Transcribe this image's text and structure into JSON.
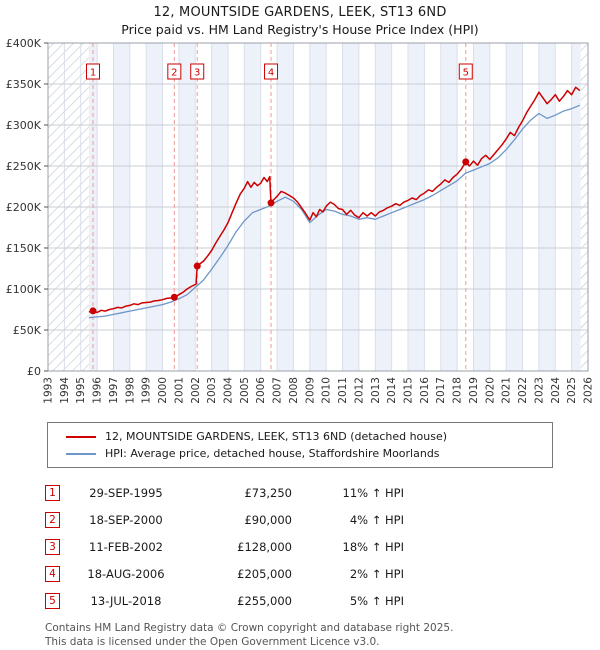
{
  "title": "12, MOUNTSIDE GARDENS, LEEK, ST13 6ND",
  "subtitle": "Price paid vs. HM Land Registry's House Price Index (HPI)",
  "accent_red": "#cc0000",
  "hpi_blue": "#6e96c8",
  "transactions": [
    {
      "num": "1",
      "date": "29-SEP-1995",
      "price": "£73,250",
      "hpi": "11% ↑ HPI"
    },
    {
      "num": "2",
      "date": "18-SEP-2000",
      "price": "£90,000",
      "hpi": "4% ↑ HPI"
    },
    {
      "num": "3",
      "date": "11-FEB-2002",
      "price": "£128,000",
      "hpi": "18% ↑ HPI"
    },
    {
      "num": "4",
      "date": "18-AUG-2006",
      "price": "£205,000",
      "hpi": "2% ↑ HPI"
    },
    {
      "num": "5",
      "date": "13-JUL-2018",
      "price": "£255,000",
      "hpi": "5% ↑ HPI"
    }
  ],
  "footer": {
    "line1": "Contains HM Land Registry data © Crown copyright and database right 2025.",
    "line2": "This data is licensed under the Open Government Licence v3.0."
  },
  "chart_data": {
    "type": "line",
    "title": "12, MOUNTSIDE GARDENS, LEEK, ST13 6ND",
    "subtitle": "Price paid vs. HM Land Registry's House Price Index (HPI)",
    "x_range": [
      1993,
      2026
    ],
    "y_range_k": [
      0,
      400
    ],
    "y_units": "GBP thousands",
    "y_ticks": [
      "£0",
      "£50K",
      "£100K",
      "£150K",
      "£200K",
      "£250K",
      "£300K",
      "£350K",
      "£400K"
    ],
    "grid": true,
    "legend_position": "bottom",
    "data_span": [
      1995.5,
      2025.55
    ],
    "series": [
      {
        "name": "12, MOUNTSIDE GARDENS, LEEK, ST13 6ND (detached house)",
        "color": "#cc0000",
        "points": [
          [
            1995.5,
            72
          ],
          [
            1995.75,
            73.25
          ],
          [
            1996,
            71.5
          ],
          [
            1996.25,
            74
          ],
          [
            1996.5,
            73
          ],
          [
            1996.75,
            75
          ],
          [
            1997,
            76
          ],
          [
            1997.25,
            77.5
          ],
          [
            1997.5,
            77
          ],
          [
            1997.75,
            79
          ],
          [
            1998,
            80
          ],
          [
            1998.25,
            82
          ],
          [
            1998.5,
            81
          ],
          [
            1998.75,
            83
          ],
          [
            1999,
            83.5
          ],
          [
            1999.25,
            84
          ],
          [
            1999.5,
            85.5
          ],
          [
            1999.75,
            86
          ],
          [
            2000,
            87
          ],
          [
            2000.25,
            88.5
          ],
          [
            2000.5,
            89
          ],
          [
            2000.72,
            90
          ],
          [
            2001,
            93
          ],
          [
            2001.25,
            96
          ],
          [
            2001.5,
            100
          ],
          [
            2001.75,
            103
          ],
          [
            2002.05,
            106
          ],
          [
            2002.12,
            128
          ],
          [
            2002.3,
            131
          ],
          [
            2002.5,
            134
          ],
          [
            2002.75,
            140
          ],
          [
            2003,
            147
          ],
          [
            2003.25,
            156
          ],
          [
            2003.5,
            164
          ],
          [
            2003.75,
            172
          ],
          [
            2004,
            181
          ],
          [
            2004.25,
            193
          ],
          [
            2004.5,
            205
          ],
          [
            2004.75,
            216
          ],
          [
            2005,
            223
          ],
          [
            2005.2,
            231
          ],
          [
            2005.4,
            224
          ],
          [
            2005.6,
            230
          ],
          [
            2005.8,
            226
          ],
          [
            2006,
            229
          ],
          [
            2006.2,
            236
          ],
          [
            2006.4,
            231
          ],
          [
            2006.55,
            237
          ],
          [
            2006.63,
            205
          ],
          [
            2006.75,
            208
          ],
          [
            2007,
            213
          ],
          [
            2007.25,
            219
          ],
          [
            2007.5,
            217
          ],
          [
            2007.75,
            214
          ],
          [
            2008,
            211
          ],
          [
            2008.25,
            206
          ],
          [
            2008.5,
            199
          ],
          [
            2008.75,
            192
          ],
          [
            2009,
            184
          ],
          [
            2009.2,
            193
          ],
          [
            2009.4,
            188
          ],
          [
            2009.6,
            197
          ],
          [
            2009.8,
            194
          ],
          [
            2010,
            201
          ],
          [
            2010.25,
            206
          ],
          [
            2010.5,
            203
          ],
          [
            2010.75,
            198
          ],
          [
            2011,
            197
          ],
          [
            2011.25,
            191
          ],
          [
            2011.5,
            196
          ],
          [
            2011.75,
            190
          ],
          [
            2012,
            187
          ],
          [
            2012.25,
            193
          ],
          [
            2012.5,
            189
          ],
          [
            2012.75,
            193
          ],
          [
            2013,
            189
          ],
          [
            2013.25,
            194
          ],
          [
            2013.5,
            196
          ],
          [
            2013.75,
            199
          ],
          [
            2014,
            201
          ],
          [
            2014.25,
            204
          ],
          [
            2014.5,
            202
          ],
          [
            2014.75,
            206
          ],
          [
            2015,
            208
          ],
          [
            2015.25,
            211
          ],
          [
            2015.5,
            209
          ],
          [
            2015.75,
            214
          ],
          [
            2016,
            217
          ],
          [
            2016.25,
            221
          ],
          [
            2016.5,
            219
          ],
          [
            2016.75,
            224
          ],
          [
            2017,
            228
          ],
          [
            2017.25,
            233
          ],
          [
            2017.5,
            230
          ],
          [
            2017.75,
            236
          ],
          [
            2018,
            240
          ],
          [
            2018.25,
            246
          ],
          [
            2018.53,
            255
          ],
          [
            2018.75,
            250
          ],
          [
            2019,
            256
          ],
          [
            2019.25,
            251
          ],
          [
            2019.5,
            259
          ],
          [
            2019.75,
            263
          ],
          [
            2020,
            258
          ],
          [
            2020.25,
            264
          ],
          [
            2020.5,
            270
          ],
          [
            2020.75,
            276
          ],
          [
            2021,
            283
          ],
          [
            2021.25,
            291
          ],
          [
            2021.5,
            287
          ],
          [
            2021.75,
            297
          ],
          [
            2022,
            305
          ],
          [
            2022.25,
            315
          ],
          [
            2022.5,
            323
          ],
          [
            2022.75,
            331
          ],
          [
            2023,
            340
          ],
          [
            2023.25,
            333
          ],
          [
            2023.5,
            326
          ],
          [
            2023.75,
            331
          ],
          [
            2024,
            337
          ],
          [
            2024.25,
            329
          ],
          [
            2024.5,
            335
          ],
          [
            2024.75,
            342
          ],
          [
            2025,
            337
          ],
          [
            2025.25,
            346
          ],
          [
            2025.5,
            342
          ]
        ]
      },
      {
        "name": "HPI: Average price, detached house, Staffordshire Moorlands",
        "color": "#6e96c8",
        "points": [
          [
            1995.5,
            65
          ],
          [
            1996,
            66
          ],
          [
            1996.5,
            67
          ],
          [
            1997,
            69
          ],
          [
            1997.5,
            71
          ],
          [
            1998,
            73
          ],
          [
            1998.5,
            75
          ],
          [
            1999,
            77
          ],
          [
            1999.5,
            79
          ],
          [
            2000,
            81
          ],
          [
            2000.5,
            84
          ],
          [
            2001,
            88
          ],
          [
            2001.5,
            93
          ],
          [
            2002,
            102
          ],
          [
            2002.5,
            111
          ],
          [
            2003,
            124
          ],
          [
            2003.5,
            138
          ],
          [
            2004,
            153
          ],
          [
            2004.5,
            170
          ],
          [
            2005,
            183
          ],
          [
            2005.5,
            193
          ],
          [
            2006,
            197
          ],
          [
            2006.5,
            201
          ],
          [
            2007,
            207
          ],
          [
            2007.5,
            212
          ],
          [
            2008,
            207
          ],
          [
            2008.5,
            197
          ],
          [
            2009,
            181
          ],
          [
            2009.5,
            190
          ],
          [
            2010,
            197
          ],
          [
            2010.5,
            195
          ],
          [
            2011,
            191
          ],
          [
            2011.5,
            189
          ],
          [
            2012,
            185
          ],
          [
            2012.5,
            187
          ],
          [
            2013,
            185
          ],
          [
            2013.5,
            189
          ],
          [
            2014,
            193
          ],
          [
            2014.5,
            197
          ],
          [
            2015,
            201
          ],
          [
            2015.5,
            205
          ],
          [
            2016,
            209
          ],
          [
            2016.5,
            214
          ],
          [
            2017,
            220
          ],
          [
            2017.5,
            226
          ],
          [
            2018,
            232
          ],
          [
            2018.5,
            241
          ],
          [
            2019,
            245
          ],
          [
            2019.5,
            249
          ],
          [
            2020,
            253
          ],
          [
            2020.5,
            260
          ],
          [
            2021,
            270
          ],
          [
            2021.5,
            282
          ],
          [
            2022,
            295
          ],
          [
            2022.5,
            306
          ],
          [
            2023,
            314
          ],
          [
            2023.5,
            308
          ],
          [
            2024,
            312
          ],
          [
            2024.5,
            317
          ],
          [
            2025,
            320
          ],
          [
            2025.5,
            324
          ]
        ]
      }
    ],
    "sales": [
      {
        "n": "1",
        "x": 1995.75,
        "y_k": 73.25,
        "date": "29-SEP-1995",
        "price_gbp": 73250,
        "vs_hpi": "11% above"
      },
      {
        "n": "2",
        "x": 2000.72,
        "y_k": 90,
        "date": "18-SEP-2000",
        "price_gbp": 90000,
        "vs_hpi": "4% above"
      },
      {
        "n": "3",
        "x": 2002.12,
        "y_k": 128,
        "date": "11-FEB-2002",
        "price_gbp": 128000,
        "vs_hpi": "18% above"
      },
      {
        "n": "4",
        "x": 2006.63,
        "y_k": 205,
        "date": "18-AUG-2006",
        "price_gbp": 205000,
        "vs_hpi": "2% above"
      },
      {
        "n": "5",
        "x": 2018.53,
        "y_k": 255,
        "date": "13-JUL-2018",
        "price_gbp": 255000,
        "vs_hpi": "5% above"
      }
    ]
  }
}
